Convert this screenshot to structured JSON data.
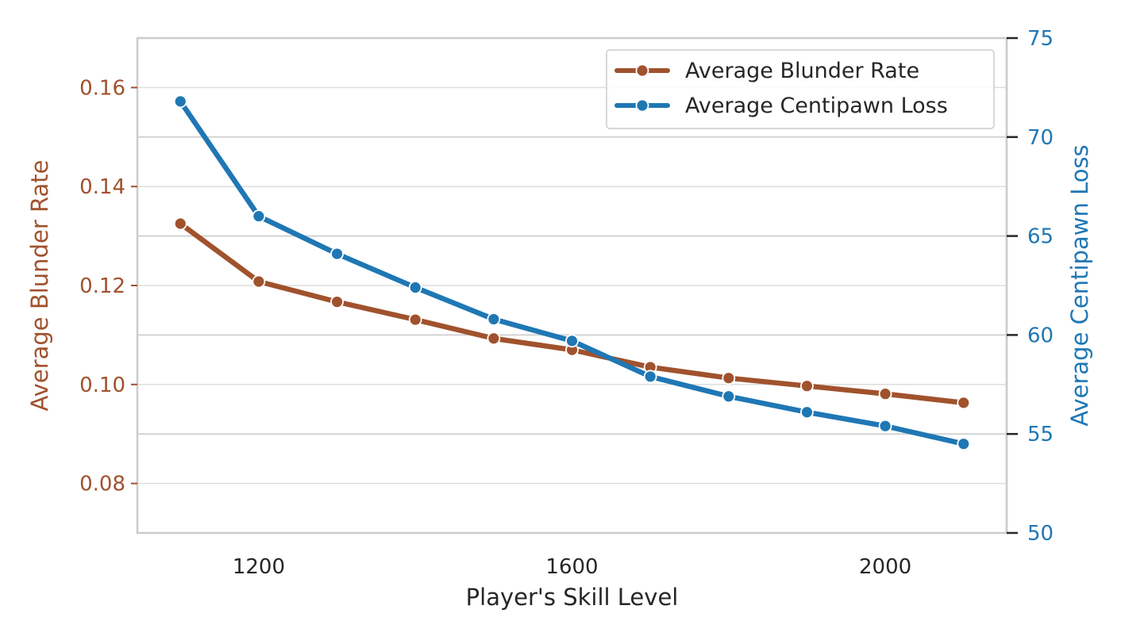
{
  "chart_data": {
    "type": "line",
    "xlabel": "Player's Skill Level",
    "x": [
      1100,
      1200,
      1300,
      1400,
      1500,
      1600,
      1700,
      1800,
      1900,
      2000,
      2100
    ],
    "x_ticks": [
      1200,
      1600,
      2000
    ],
    "x_tick_labels": [
      "1200",
      "1600",
      "2000"
    ],
    "xlim": [
      1045,
      2155
    ],
    "grid": true,
    "legend_position": "top-right",
    "axes": {
      "left": {
        "label": "Average Blunder Rate",
        "color": "#A0522D",
        "ylim": [
          0.07,
          0.17
        ],
        "ticks": [
          0.08,
          0.1,
          0.12,
          0.14,
          0.16
        ],
        "tick_labels": [
          "0.08",
          "0.10",
          "0.12",
          "0.14",
          "0.16"
        ]
      },
      "right": {
        "label": "Average Centipawn Loss",
        "color": "#1F77B4",
        "ylim": [
          50,
          75
        ],
        "ticks": [
          50,
          55,
          60,
          65,
          70,
          75
        ],
        "tick_labels": [
          "50",
          "55",
          "60",
          "65",
          "70",
          "75"
        ]
      }
    },
    "series": [
      {
        "name": "Average Blunder Rate",
        "axis": "left",
        "color": "#A0522D",
        "values": [
          0.1325,
          0.1208,
          0.1167,
          0.1131,
          0.1093,
          0.107,
          0.1035,
          0.1013,
          0.0997,
          0.0981,
          0.0963
        ]
      },
      {
        "name": "Average Centipawn Loss",
        "axis": "right",
        "color": "#1F77B4",
        "values": [
          71.8,
          66.0,
          64.1,
          62.4,
          60.8,
          59.7,
          57.9,
          56.9,
          56.1,
          55.4,
          54.5
        ]
      }
    ]
  }
}
